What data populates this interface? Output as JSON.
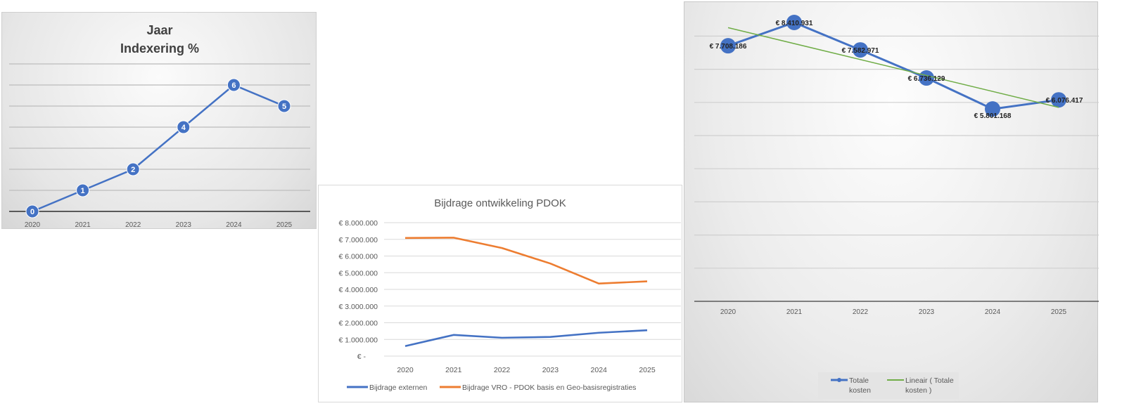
{
  "chart_data": [
    {
      "type": "line",
      "title": [
        "Jaar",
        "Indexering %"
      ],
      "categories": [
        "2020",
        "2021",
        "2022",
        "2023",
        "2024",
        "2025"
      ],
      "series": [
        {
          "values": [
            0,
            1,
            2,
            4,
            6,
            5
          ],
          "color": "#4472c4"
        }
      ],
      "data_labels": true,
      "ylim": [
        0,
        7
      ],
      "grid": true
    },
    {
      "type": "line",
      "title": "Bijdrage ontwikkeling PDOK",
      "categories": [
        "2020",
        "2021",
        "2022",
        "2023",
        "2024",
        "2025"
      ],
      "yticks": [
        "€ -",
        "€ 1.000.000",
        "€ 2.000.000",
        "€ 3.000.000",
        "€ 4.000.000",
        "€ 5.000.000",
        "€ 6.000.000",
        "€ 7.000.000",
        "€ 8.000.000"
      ],
      "ylim": [
        0,
        8000000
      ],
      "grid": true,
      "legend": "bottom",
      "series": [
        {
          "name": "Bijdrage externen",
          "values": [
            600000,
            1270000,
            1100000,
            1150000,
            1400000,
            1550000
          ],
          "color": "#4472c4"
        },
        {
          "name": "Bijdrage VRO - PDOK basis en Geo-basisregistraties",
          "values": [
            7080000,
            7100000,
            6480000,
            5550000,
            4350000,
            4480000
          ],
          "color": "#ed7d31"
        }
      ]
    },
    {
      "type": "line",
      "categories": [
        "2020",
        "2021",
        "2022",
        "2023",
        "2024",
        "2025"
      ],
      "ylim": [
        0,
        9000000
      ],
      "grid": true,
      "legend": "bottom",
      "series": [
        {
          "name": "Totale kosten",
          "values": [
            7708186,
            8410931,
            7582971,
            6736129,
            5801168,
            6076417
          ],
          "labels": [
            "€ 7.708.186",
            "€ 8.410.931",
            "€ 7.582.971",
            "€ 6.736.129",
            "€ 5.801.168",
            "€ 6.076.417"
          ],
          "color": "#4472c4"
        },
        {
          "name": "Lineair ( Totale kosten )",
          "trendline": "linear",
          "color": "#70ad47"
        }
      ]
    }
  ]
}
